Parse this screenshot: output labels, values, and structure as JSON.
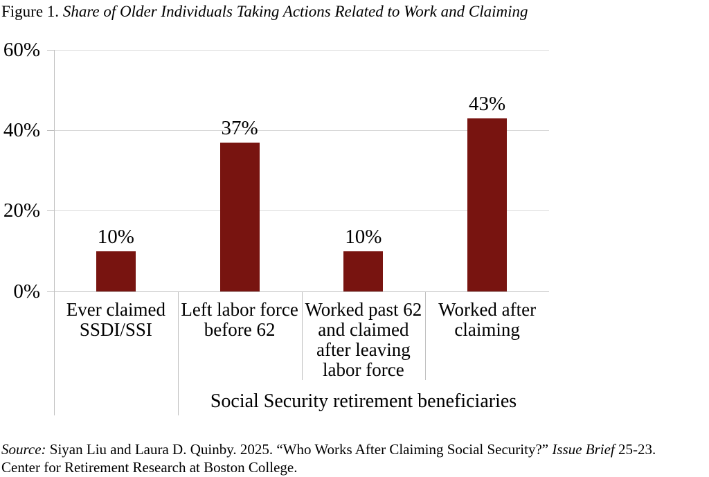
{
  "figure": {
    "title_prefix": "Figure 1. ",
    "title_italic": "Share of Older Individuals Taking Actions Related to Work and Claiming"
  },
  "chart_data": {
    "type": "bar",
    "title": "Share of Older Individuals Taking Actions Related to Work and Claiming",
    "categories": [
      "Ever claimed\nSSDI/SSI",
      "Left labor force\nbefore 62",
      "Worked past 62\nand claimed\nafter leaving\nlabor force",
      "Worked after\nclaiming"
    ],
    "values": [
      10,
      37,
      10,
      43
    ],
    "value_labels": [
      "10%",
      "37%",
      "10%",
      "43%"
    ],
    "group_label": "Social Security retirement beneficiaries",
    "group_spans_categories": [
      1,
      2,
      3
    ],
    "xlabel": "",
    "ylabel": "",
    "ylim": [
      0,
      60
    ],
    "y_tick_interval": 20,
    "y_ticks": [
      "60%",
      "40%",
      "20%",
      "0%"
    ],
    "grid": true,
    "legend": "none",
    "bar_color": "#781410",
    "gridline_color": "#d9d9d9",
    "axis_color": "#bfbfbf"
  },
  "source": {
    "label_italic": "Source:",
    "text_1": " Siyan Liu and Laura D. Quinby. 2025. “Who Works After Claiming Social Security?” ",
    "brief_italic": "Issue Brief",
    "text_2": " 25-23.",
    "line2": "Center for Retirement Research at Boston College."
  }
}
